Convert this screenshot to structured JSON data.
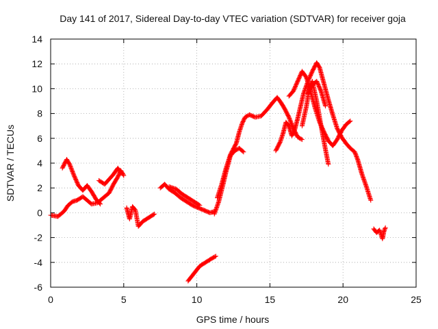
{
  "chart_data": {
    "type": "scatter",
    "title": "Day 141 of 2017, Sidereal Day-to-day VTEC variation (SDTVAR) for receiver goja",
    "xlabel": "GPS time / hours",
    "ylabel": "SDTVAR / TECUs",
    "xlim": [
      0,
      25
    ],
    "ylim": [
      -6,
      14
    ],
    "x_ticks": [
      "0",
      "5",
      "10",
      "15",
      "20",
      "25"
    ],
    "y_ticks": [
      "-6",
      "-4",
      "-2",
      "0",
      "2",
      "4",
      "6",
      "8",
      "10",
      "12",
      "14"
    ],
    "grid": true,
    "legend": "none",
    "marker": "plus",
    "color": "#ff0000",
    "series": [
      {
        "segments": [
          [
            [
              0.0,
              -0.2
            ],
            [
              0.5,
              -0.3
            ],
            [
              0.9,
              0.1
            ],
            [
              1.2,
              0.6
            ],
            [
              1.5,
              0.9
            ],
            [
              1.8,
              1.0
            ],
            [
              2.2,
              1.3
            ],
            [
              2.5,
              1.0
            ],
            [
              2.8,
              0.7
            ],
            [
              3.2,
              0.8
            ],
            [
              3.6,
              1.2
            ],
            [
              4.0,
              1.6
            ],
            [
              4.3,
              2.3
            ],
            [
              4.6,
              2.9
            ],
            [
              4.8,
              3.4
            ],
            [
              5.0,
              3.0
            ]
          ],
          [
            [
              0.8,
              3.6
            ],
            [
              1.1,
              4.3
            ],
            [
              1.3,
              3.9
            ],
            [
              1.6,
              3.0
            ],
            [
              1.9,
              2.2
            ],
            [
              2.2,
              1.8
            ],
            [
              2.5,
              2.2
            ],
            [
              2.8,
              1.7
            ],
            [
              3.1,
              1.1
            ],
            [
              3.4,
              0.7
            ]
          ],
          [
            [
              3.3,
              2.6
            ],
            [
              3.7,
              2.3
            ],
            [
              4.0,
              2.7
            ],
            [
              4.3,
              3.1
            ],
            [
              4.6,
              3.6
            ],
            [
              4.8,
              3.2
            ]
          ],
          [
            [
              5.2,
              0.4
            ],
            [
              5.4,
              -0.5
            ],
            [
              5.6,
              0.5
            ],
            [
              5.8,
              0.2
            ],
            [
              6.0,
              -1.1
            ],
            [
              6.3,
              -0.7
            ],
            [
              6.7,
              -0.4
            ],
            [
              7.1,
              -0.1
            ]
          ],
          [
            [
              7.5,
              2.0
            ],
            [
              7.8,
              2.3
            ],
            [
              8.1,
              1.9
            ],
            [
              8.5,
              1.6
            ],
            [
              8.9,
              1.2
            ],
            [
              9.3,
              0.9
            ],
            [
              9.7,
              0.6
            ],
            [
              10.1,
              0.4
            ],
            [
              10.5,
              0.2
            ],
            [
              10.9,
              0.0
            ],
            [
              11.2,
              0.1
            ]
          ],
          [
            [
              8.1,
              2.1
            ],
            [
              8.6,
              1.9
            ],
            [
              9.0,
              1.5
            ],
            [
              9.4,
              1.2
            ],
            [
              9.8,
              0.9
            ],
            [
              10.2,
              0.6
            ]
          ],
          [
            [
              9.4,
              -5.5
            ],
            [
              9.8,
              -4.9
            ],
            [
              10.2,
              -4.3
            ],
            [
              10.6,
              -4.0
            ],
            [
              11.0,
              -3.7
            ],
            [
              11.3,
              -3.5
            ]
          ],
          [
            [
              11.2,
              -0.1
            ],
            [
              11.5,
              0.9
            ],
            [
              11.8,
              2.3
            ],
            [
              12.0,
              3.3
            ],
            [
              12.3,
              4.6
            ],
            [
              12.6,
              5.0
            ],
            [
              12.9,
              5.2
            ],
            [
              13.2,
              4.9
            ]
          ],
          [
            [
              11.4,
              1.2
            ],
            [
              11.7,
              2.3
            ],
            [
              12.0,
              3.6
            ],
            [
              12.3,
              4.7
            ],
            [
              12.7,
              5.6
            ],
            [
              12.9,
              6.5
            ],
            [
              13.1,
              7.2
            ],
            [
              13.3,
              7.7
            ],
            [
              13.6,
              7.9
            ],
            [
              14.0,
              7.7
            ],
            [
              14.4,
              7.8
            ],
            [
              14.8,
              8.3
            ],
            [
              15.2,
              8.9
            ],
            [
              15.5,
              9.3
            ],
            [
              15.8,
              8.8
            ],
            [
              16.0,
              8.4
            ],
            [
              16.3,
              7.7
            ],
            [
              16.6,
              6.8
            ],
            [
              16.9,
              6.1
            ],
            [
              17.2,
              5.9
            ]
          ],
          [
            [
              15.4,
              5.0
            ],
            [
              15.7,
              5.7
            ],
            [
              15.9,
              6.4
            ],
            [
              16.1,
              7.3
            ],
            [
              16.3,
              7.0
            ],
            [
              16.5,
              6.2
            ],
            [
              16.7,
              6.7
            ],
            [
              16.9,
              7.6
            ],
            [
              17.1,
              8.6
            ],
            [
              17.3,
              9.6
            ],
            [
              17.6,
              10.6
            ],
            [
              17.9,
              11.4
            ],
            [
              18.2,
              12.1
            ],
            [
              18.4,
              11.7
            ],
            [
              18.7,
              10.4
            ],
            [
              19.0,
              9.1
            ],
            [
              19.3,
              7.9
            ],
            [
              19.6,
              6.8
            ],
            [
              19.9,
              6.1
            ],
            [
              20.2,
              5.6
            ],
            [
              20.5,
              5.2
            ],
            [
              20.8,
              4.9
            ],
            [
              21.0,
              4.3
            ],
            [
              21.3,
              3.1
            ],
            [
              21.6,
              2.1
            ],
            [
              21.9,
              1.0
            ]
          ],
          [
            [
              16.3,
              9.4
            ],
            [
              16.6,
              9.8
            ],
            [
              16.9,
              10.6
            ],
            [
              17.2,
              11.4
            ],
            [
              17.5,
              10.9
            ],
            [
              17.8,
              9.7
            ],
            [
              18.1,
              8.4
            ],
            [
              18.4,
              7.3
            ],
            [
              18.7,
              6.5
            ],
            [
              19.0,
              5.8
            ],
            [
              19.3,
              5.4
            ],
            [
              19.6,
              5.9
            ],
            [
              19.9,
              6.6
            ],
            [
              20.2,
              7.1
            ],
            [
              20.5,
              7.4
            ]
          ],
          [
            [
              17.2,
              7.0
            ],
            [
              17.5,
              8.6
            ],
            [
              17.7,
              10.1
            ],
            [
              17.9,
              10.6
            ],
            [
              18.2,
              9.0
            ],
            [
              18.5,
              7.0
            ],
            [
              18.8,
              5.1
            ],
            [
              19.0,
              3.9
            ]
          ],
          [
            [
              17.6,
              9.6
            ],
            [
              17.9,
              10.3
            ],
            [
              18.2,
              10.6
            ],
            [
              18.5,
              9.8
            ],
            [
              18.8,
              8.6
            ]
          ],
          [
            [
              22.1,
              -1.3
            ],
            [
              22.3,
              -1.6
            ],
            [
              22.5,
              -1.4
            ],
            [
              22.7,
              -2.1
            ],
            [
              22.8,
              -1.5
            ],
            [
              22.9,
              -1.2
            ]
          ]
        ]
      }
    ]
  }
}
